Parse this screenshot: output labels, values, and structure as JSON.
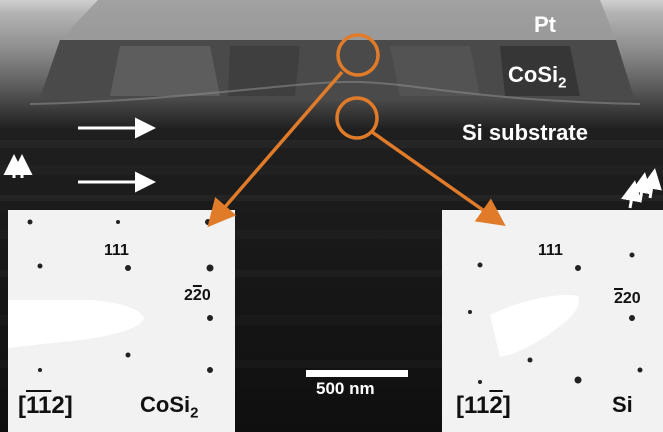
{
  "labels": {
    "pt": "Pt",
    "cosi2_base": "CoSi",
    "cosi2_sub": "2",
    "si_substrate": "Si substrate",
    "scale_bar": "500 nm"
  },
  "left_pattern": {
    "spot_111": "111",
    "spot_220_a": "2",
    "spot_220_b": "2",
    "spot_220_c": "0",
    "zone_open": "[",
    "zone_1a": "1",
    "zone_1b": "1",
    "zone_2": "2",
    "zone_close": "]",
    "phase_base": "CoSi",
    "phase_sub": "2"
  },
  "right_pattern": {
    "spot_111": "111",
    "spot_220_a": "2",
    "spot_220_b": "20",
    "zone_open": "[11",
    "zone_2": "2",
    "zone_close": "]",
    "phase": "Si"
  },
  "colors": {
    "annotation_orange": "#e07b2a",
    "label_white": "#ffffff",
    "label_black": "#111111"
  }
}
